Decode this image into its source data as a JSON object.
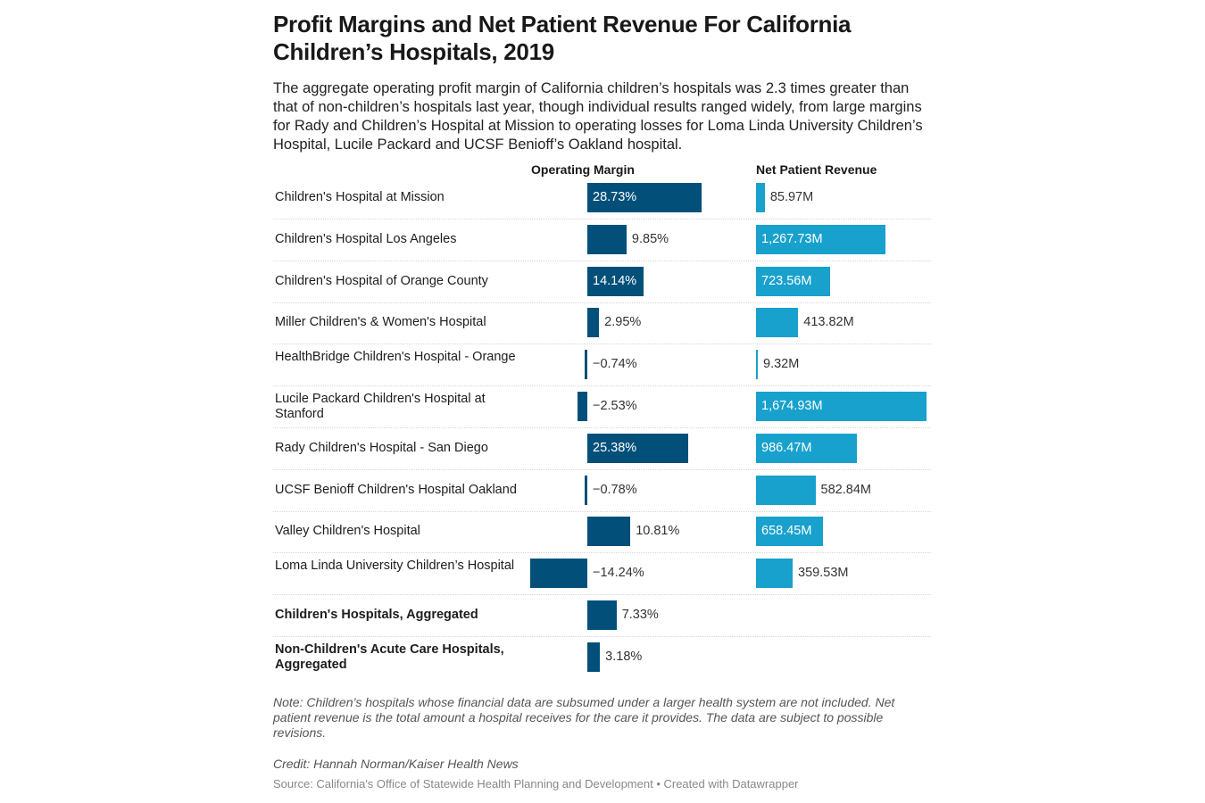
{
  "header": {
    "title": "Profit Margins and Net Patient Revenue For California Children’s Hospitals, 2019",
    "description": "The aggregate operating profit margin of California children’s hospitals was 2.3 times greater than that of non-children’s hospitals last year, though individual results ranged widely, from large margins for Rady and Children’s Hospital at Mission to operating losses for Loma Linda University Children’s Hospital,  Lucile Packard and UCSF Benioff’s Oakland hospital."
  },
  "footer": {
    "note": "Note: Children’s hospitals whose financial data are subsumed under a larger health system are not included. Net patient revenue is the total amount a hospital receives for the care it provides. The data are subject to possible revisions.",
    "credit": "Credit: Hannah Norman/Kaiser Health News",
    "source": "Source: California's Office of Statewide Health Planning and Development • Created with Datawrapper"
  },
  "colors": {
    "operating_margin": "#02507a",
    "net_patient_revenue": "#18a1cd"
  },
  "chart_data": {
    "type": "bar",
    "orientation": "horizontal",
    "title": "Profit Margins and Net Patient Revenue For California Children’s Hospitals, 2019",
    "columns": [
      {
        "key": "margin",
        "name": "Operating Margin",
        "unit": "%"
      },
      {
        "key": "revenue",
        "name": "Net Patient Revenue",
        "unit": "M"
      }
    ],
    "categories": [
      "Children's Hospital at Mission",
      "Children's Hospital Los Angeles",
      "Children's Hospital of Orange County",
      "Miller Children's & Women's Hospital",
      "HealthBridge Children's Hospital - Orange",
      "Lucile Packard Children's Hospital at Stanford",
      "Rady Children's Hospital - San Diego",
      "UCSF Benioff Children's Hospital Oakland",
      "Valley Children's Hospital",
      "Loma Linda University Children’s Hospital",
      "Children's Hospitals, Aggregated",
      "Non-Children's Acute Care Hospitals, Aggregated"
    ],
    "bold_categories": [
      "Children's Hospitals, Aggregated",
      "Non-Children's Acute Care Hospitals, Aggregated"
    ],
    "series": [
      {
        "name": "Operating Margin",
        "values": [
          28.73,
          9.85,
          14.14,
          2.95,
          -0.74,
          -2.53,
          25.38,
          -0.78,
          10.81,
          -14.24,
          7.33,
          3.18
        ],
        "labels": [
          "28.73%",
          "9.85%",
          "14.14%",
          "2.95%",
          "−0.74%",
          "−2.53%",
          "25.38%",
          "−0.78%",
          "10.81%",
          "−14.24%",
          "7.33%",
          "3.18%"
        ]
      },
      {
        "name": "Net Patient Revenue",
        "values": [
          85.97,
          1267.73,
          723.56,
          413.82,
          9.32,
          1674.93,
          986.47,
          582.84,
          658.45,
          359.53,
          null,
          null
        ],
        "labels": [
          "85.97M",
          "1,267.73M",
          "723.56M",
          "413.82M",
          "9.32M",
          "1,674.93M",
          "986.47M",
          "582.84M",
          "658.45M",
          "359.53M",
          "",
          ""
        ]
      }
    ],
    "xlabel": "",
    "ylabel": ""
  }
}
